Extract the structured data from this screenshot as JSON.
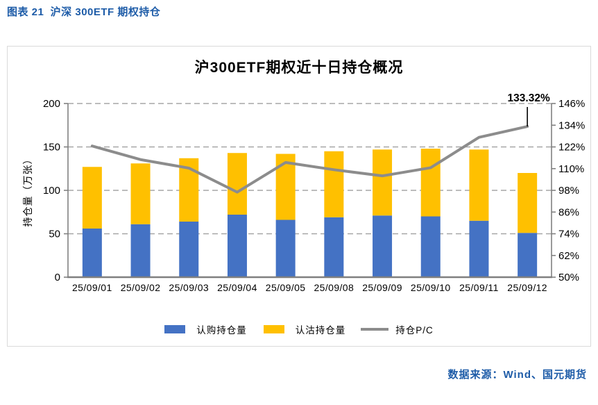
{
  "header": {
    "caption": "图表 21  沪深 300ETF 期权持仓"
  },
  "footer": {
    "source": "数据来源：Wind、国元期货"
  },
  "chart": {
    "title": "沪300ETF期权近十日持仓概况",
    "legend": [
      {
        "label": "认购持仓量",
        "swatch": "blue-bar"
      },
      {
        "label": "认沽持仓量",
        "swatch": "yellow-bar"
      },
      {
        "label": "持仓P/C",
        "swatch": "gray-line"
      }
    ],
    "annotation": {
      "text": "133.32%"
    }
  },
  "theme": {
    "accent_text_blue": "#1E5CA8",
    "panel_border": "#DADADA",
    "grid": "#A6A6A6",
    "axis": "#808080",
    "bar_call_blue": "#4472C4",
    "bar_put_yellow": "#FFC000",
    "line_pc_gray": "#8C8C8C",
    "annotation_red": "#FF0000",
    "leader_black": "#000000"
  },
  "chart_data": {
    "type": "bar",
    "subtype": "stacked-bar-with-line",
    "title": "沪300ETF期权近十日持仓概况",
    "categories": [
      "25/09/01",
      "25/09/02",
      "25/09/03",
      "25/09/04",
      "25/09/05",
      "25/09/08",
      "25/09/09",
      "25/09/10",
      "25/09/11",
      "25/09/12"
    ],
    "series": [
      {
        "name": "认购持仓量",
        "type": "bar",
        "stacked": true,
        "axis": "left",
        "values": [
          56,
          61,
          64,
          72,
          66,
          69,
          71,
          70,
          65,
          51
        ]
      },
      {
        "name": "认沽持仓量",
        "type": "bar",
        "stacked": true,
        "axis": "left",
        "values": [
          71,
          70,
          73,
          71,
          76,
          76,
          76,
          78,
          82,
          69
        ]
      },
      {
        "name": "持仓P/C",
        "type": "line",
        "axis": "right",
        "values": [
          122.5,
          115.0,
          110.3,
          97.0,
          113.4,
          109.4,
          106.0,
          110.5,
          127.3,
          133.32
        ]
      }
    ],
    "left_axis": {
      "title": "持仓量（万张）",
      "ticks": [
        0,
        50,
        100,
        150,
        200
      ],
      "range": [
        0,
        200
      ]
    },
    "right_axis": {
      "ticks": [
        "50%",
        "62%",
        "74%",
        "86%",
        "98%",
        "110%",
        "122%",
        "134%",
        "146%"
      ],
      "range": [
        50,
        146
      ],
      "unit": "%"
    },
    "grid": "horizontal-dashed",
    "legend_position": "bottom",
    "last_point_label": "133.32%"
  }
}
